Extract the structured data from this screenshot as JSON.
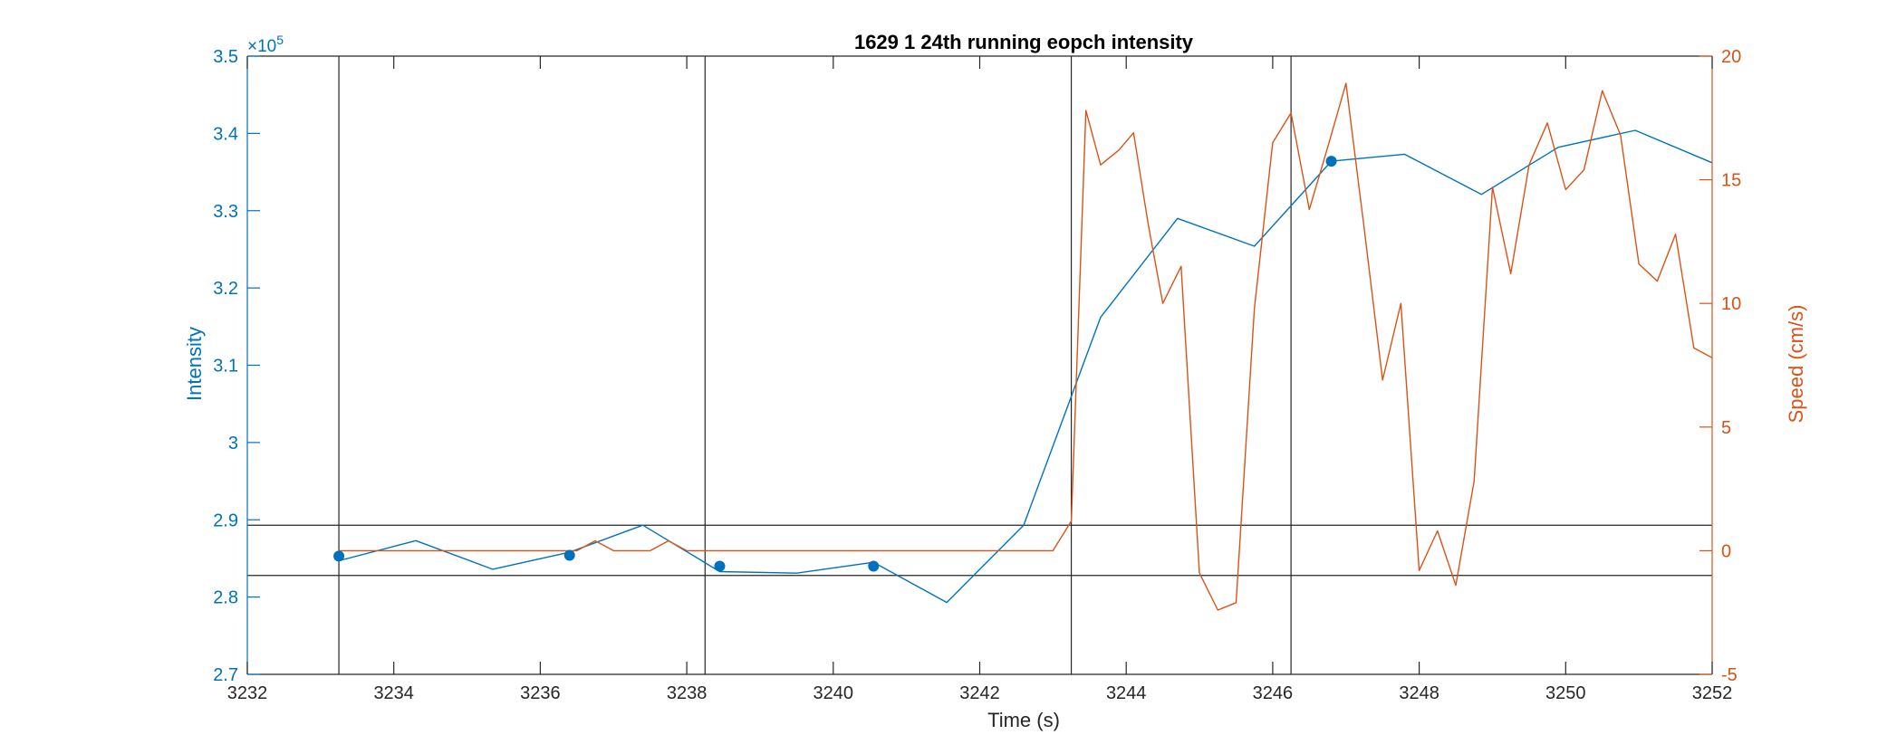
{
  "chart_data": {
    "type": "line",
    "title": "1629 1 24th running eopch intensity",
    "xlabel": "Time (s)",
    "ylabel_left": "Intensity",
    "ylabel_right": "Speed (cm/s)",
    "y_left_exponent_label": "×10",
    "y_left_exponent_power": "5",
    "xlim": [
      3232,
      3252
    ],
    "ylim_left": [
      270000,
      350000
    ],
    "ylim_right": [
      -5,
      20
    ],
    "x_ticks": [
      3232,
      3234,
      3236,
      3238,
      3240,
      3242,
      3244,
      3246,
      3248,
      3250,
      3252
    ],
    "x_tick_labels": [
      "3232",
      "3234",
      "3236",
      "3238",
      "3240",
      "3242",
      "3244",
      "3246",
      "3248",
      "3250",
      "3252"
    ],
    "y_left_ticks": [
      270000,
      280000,
      290000,
      300000,
      310000,
      320000,
      330000,
      340000,
      350000
    ],
    "y_left_tick_labels": [
      "2.7",
      "2.8",
      "2.9",
      "3",
      "3.1",
      "3.2",
      "3.3",
      "3.4",
      "3.5"
    ],
    "y_right_ticks": [
      -5,
      0,
      5,
      10,
      15,
      20
    ],
    "y_right_tick_labels": [
      "-5",
      "0",
      "5",
      "10",
      "15",
      "20"
    ],
    "grid": false,
    "colors": {
      "intensity": "#0072BD",
      "speed": "#D95319",
      "reference_lines": "#262626",
      "axes": "#262626"
    },
    "series": [
      {
        "axis": "left",
        "color": "#0072BD",
        "x": [
          3233.25,
          3234.3,
          3235.35,
          3236.4,
          3237.4,
          3238.45,
          3239.5,
          3240.55,
          3241.55,
          3242.6,
          3243.65,
          3244.7,
          3245.75,
          3246.8,
          3247.8,
          3248.85,
          3249.9,
          3250.95,
          3252
        ],
        "y": [
          284700,
          287300,
          283600,
          285800,
          289300,
          283300,
          283100,
          284500,
          279300,
          289300,
          316200,
          329000,
          325400,
          336400,
          337300,
          332100,
          338200,
          340400,
          336200
        ]
      },
      {
        "axis": "right",
        "color": "#D95319",
        "x": [
          3233.25,
          3233.5,
          3234,
          3234.5,
          3235,
          3235.5,
          3236,
          3236.5,
          3236.75,
          3237,
          3237.5,
          3237.75,
          3238,
          3238.5,
          3239,
          3239.5,
          3240,
          3240.5,
          3241,
          3241.5,
          3242,
          3242.5,
          3243,
          3243.25,
          3243.45,
          3243.65,
          3243.9,
          3244.1,
          3244.3,
          3244.5,
          3244.75,
          3245,
          3245.25,
          3245.5,
          3245.75,
          3246,
          3246.25,
          3246.5,
          3246.75,
          3247,
          3247.25,
          3247.5,
          3247.75,
          3248,
          3248.25,
          3248.5,
          3248.75,
          3249,
          3249.25,
          3249.5,
          3249.75,
          3250,
          3250.25,
          3250.5,
          3250.75,
          3251,
          3251.25,
          3251.5,
          3251.75,
          3252
        ],
        "y": [
          0,
          0,
          0,
          0,
          0,
          0,
          0,
          0,
          0.4,
          0,
          0,
          0.4,
          0,
          0,
          0,
          0,
          0,
          0,
          0,
          0,
          0,
          0,
          0,
          1.2,
          17.8,
          15.6,
          16.2,
          16.9,
          13.2,
          10,
          11.5,
          -0.9,
          -2.4,
          -2.1,
          9.8,
          16.5,
          17.7,
          13.8,
          16.3,
          18.9,
          13,
          6.9,
          10,
          -0.8,
          0.8,
          -1.4,
          2.8,
          14.7,
          11.2,
          15.6,
          17.3,
          14.6,
          15.4,
          18.6,
          16.8,
          11.6,
          10.9,
          12.8,
          8.2,
          7.8
        ]
      }
    ],
    "markers": {
      "axis": "left",
      "color": "#0072BD",
      "x": [
        3233.25,
        3236.4,
        3238.45,
        3240.55,
        3246.8
      ],
      "y": [
        285300,
        285400,
        284000,
        284000,
        336400
      ]
    },
    "vertical_lines_x": [
      3233.25,
      3238.25,
      3243.25,
      3246.25
    ],
    "horizontal_lines_y_left": [
      289300,
      282800
    ]
  }
}
